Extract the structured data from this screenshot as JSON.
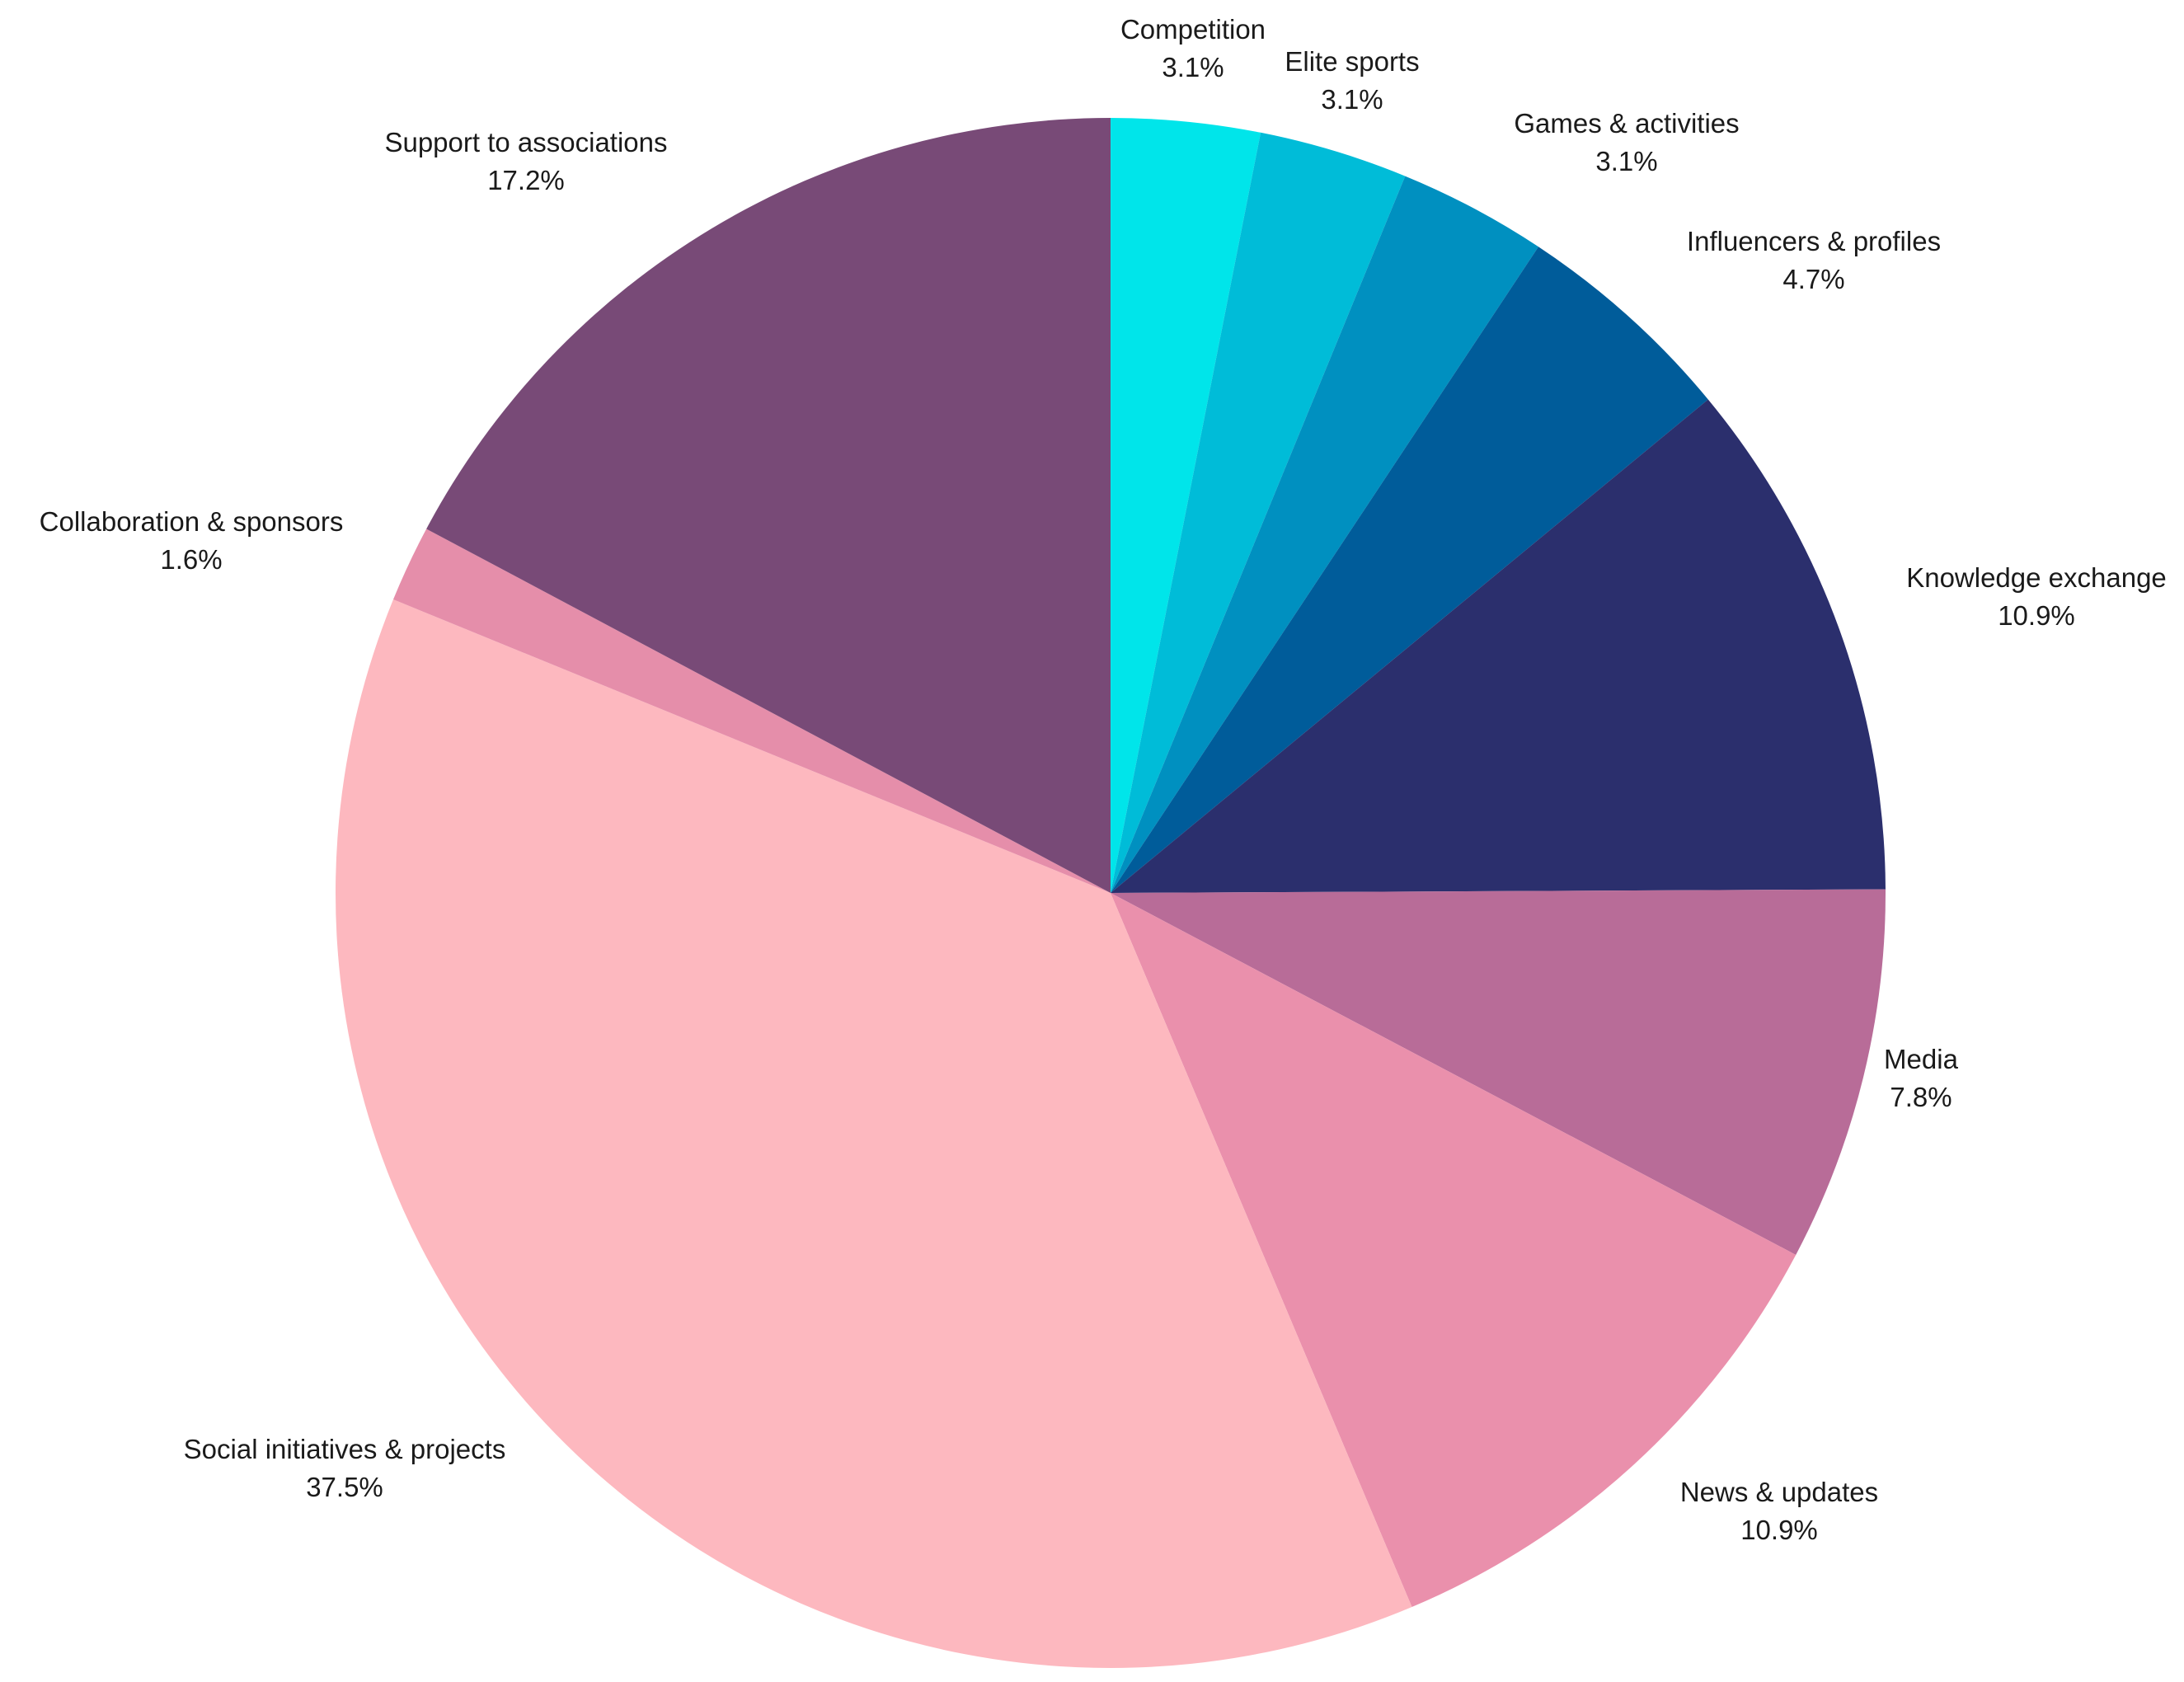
{
  "chart_data": {
    "type": "pie",
    "title": "",
    "start_angle": "12 o'clock",
    "direction": "clockwise",
    "legend": "none",
    "label_format": "category and percent outside each slice",
    "slices": [
      {
        "label": "Competition",
        "value": 3.1,
        "value_text": "3.1%",
        "color": "#00E5EA"
      },
      {
        "label": "Elite sports",
        "value": 3.1,
        "value_text": "3.1%",
        "color": "#00BCD8"
      },
      {
        "label": "Games & activities",
        "value": 3.1,
        "value_text": "3.1%",
        "color": "#0090C0"
      },
      {
        "label": "Influencers & profiles",
        "value": 4.7,
        "value_text": "4.7%",
        "color": "#005C9A"
      },
      {
        "label": "Knowledge exchange",
        "value": 10.9,
        "value_text": "10.9%",
        "color": "#2B2F6D"
      },
      {
        "label": "Media",
        "value": 7.8,
        "value_text": "7.8%",
        "color": "#B86C98"
      },
      {
        "label": "News & updates",
        "value": 10.9,
        "value_text": "10.9%",
        "color": "#EA90AC"
      },
      {
        "label": "Social initiatives & projects",
        "value": 37.5,
        "value_text": "37.5%",
        "color": "#FDB8BF"
      },
      {
        "label": "Collaboration & sponsors",
        "value": 1.6,
        "value_text": "1.6%",
        "color": "#E58EAA"
      },
      {
        "label": "Support to associations",
        "value": 17.2,
        "value_text": "17.2%",
        "color": "#784A77"
      }
    ]
  }
}
